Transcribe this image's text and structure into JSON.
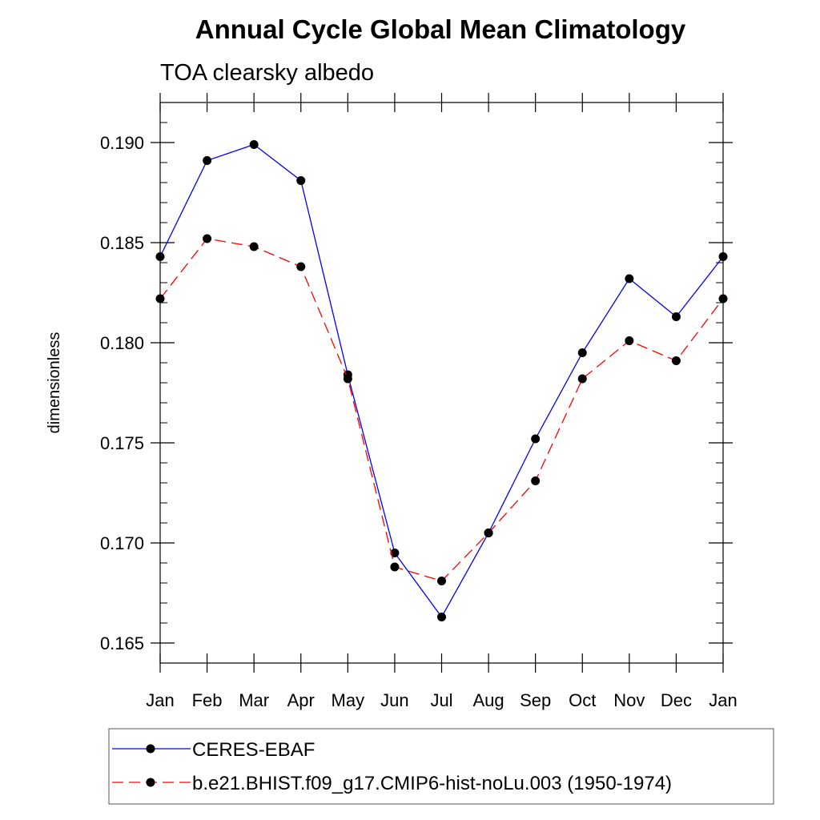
{
  "chart_data": {
    "type": "line",
    "title": "Annual Cycle Global Mean Climatology",
    "subtitle": "TOA clearsky albedo",
    "ylabel": "dimensionless",
    "xlabel": "",
    "categories": [
      "Jan",
      "Feb",
      "Mar",
      "Apr",
      "May",
      "Jun",
      "Jul",
      "Aug",
      "Sep",
      "Oct",
      "Nov",
      "Dec",
      "Jan"
    ],
    "ylim": [
      0.164,
      0.192
    ],
    "yticks": [
      0.165,
      0.17,
      0.175,
      0.18,
      0.185,
      0.19
    ],
    "ytick_labels": [
      "0.165",
      "0.170",
      "0.175",
      "0.180",
      "0.185",
      "0.190"
    ],
    "grid": false,
    "legend_position": "bottom",
    "series": [
      {
        "name": "CERES-EBAF",
        "color": "#0000ff",
        "line_style": "solid",
        "marker": "circle",
        "values": [
          0.1843,
          0.1891,
          0.1899,
          0.1881,
          0.1784,
          0.1695,
          0.1663,
          0.1705,
          0.1752,
          0.1795,
          0.1832,
          0.1813,
          0.1843
        ]
      },
      {
        "name": "b.e21.BHIST.f09_g17.CMIP6-hist-noLu.003 (1950-1974)",
        "color": "#ff0000",
        "line_style": "dashed",
        "marker": "circle",
        "values": [
          0.1822,
          0.1852,
          0.1848,
          0.1838,
          0.1782,
          0.1688,
          0.1681,
          0.1705,
          0.1731,
          0.1782,
          0.1801,
          0.1791,
          0.1822
        ]
      }
    ]
  }
}
